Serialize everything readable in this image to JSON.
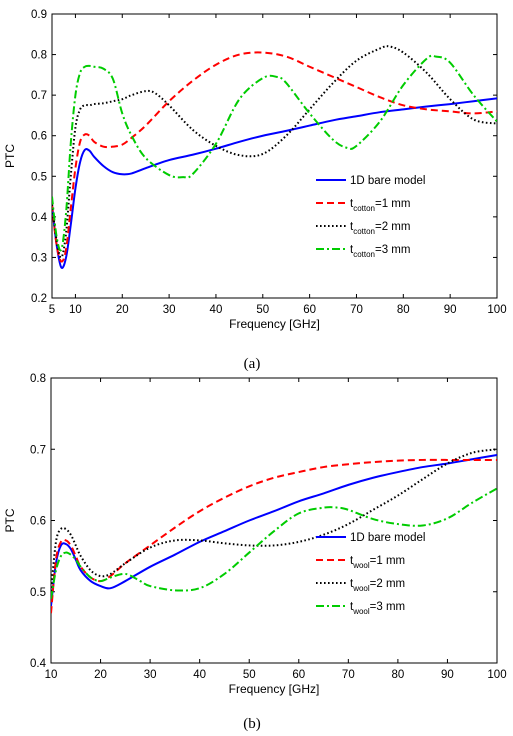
{
  "chart_data": [
    {
      "type": "line",
      "caption": "(a)",
      "xlabel": "Frequency [GHz]",
      "ylabel": "PTC",
      "xlim": [
        5,
        100
      ],
      "ylim": [
        0.2,
        0.9
      ],
      "xticks": [
        5,
        10,
        20,
        30,
        40,
        50,
        60,
        70,
        80,
        90,
        100
      ],
      "yticks": [
        0.2,
        0.3,
        0.4,
        0.5,
        0.6,
        0.7,
        0.8,
        0.9
      ],
      "grid": false,
      "legend_position": "lower-right",
      "series": [
        {
          "legend_main": "1D bare model",
          "legend_sub": "",
          "legend_tail": "",
          "color": "#0000ff",
          "style": "solid",
          "x": [
            5,
            6,
            7,
            8,
            9,
            10,
            11,
            12,
            13,
            14,
            16,
            18,
            20,
            22,
            25,
            30,
            35,
            40,
            45,
            50,
            55,
            60,
            65,
            70,
            75,
            80,
            85,
            90,
            95,
            100
          ],
          "y": [
            0.43,
            0.33,
            0.275,
            0.3,
            0.38,
            0.47,
            0.535,
            0.565,
            0.563,
            0.548,
            0.525,
            0.51,
            0.505,
            0.507,
            0.52,
            0.54,
            0.553,
            0.568,
            0.585,
            0.6,
            0.612,
            0.625,
            0.638,
            0.648,
            0.658,
            0.665,
            0.672,
            0.678,
            0.685,
            0.692
          ]
        },
        {
          "legend_main": "t",
          "legend_sub": "cotton",
          "legend_tail": "=1 mm",
          "color": "#ff0000",
          "style": "dash",
          "x": [
            5,
            6,
            7,
            8,
            9,
            10,
            11,
            12,
            13,
            14,
            16,
            18,
            20,
            22,
            25,
            30,
            35,
            40,
            45,
            50,
            55,
            60,
            65,
            70,
            75,
            80,
            85,
            90,
            95,
            100
          ],
          "y": [
            0.43,
            0.33,
            0.29,
            0.32,
            0.42,
            0.52,
            0.585,
            0.603,
            0.6,
            0.585,
            0.573,
            0.573,
            0.578,
            0.595,
            0.625,
            0.685,
            0.735,
            0.775,
            0.8,
            0.805,
            0.795,
            0.77,
            0.745,
            0.72,
            0.695,
            0.675,
            0.665,
            0.66,
            0.655,
            0.66
          ]
        },
        {
          "legend_main": "t",
          "legend_sub": "cotton",
          "legend_tail": "=2 mm",
          "color": "#000000",
          "style": "dot",
          "x": [
            5,
            6,
            7,
            8,
            9,
            10,
            11,
            12,
            13,
            14,
            16,
            18,
            20,
            22,
            25,
            27,
            30,
            35,
            40,
            45,
            50,
            55,
            60,
            65,
            70,
            75,
            77,
            80,
            85,
            90,
            95,
            100
          ],
          "y": [
            0.43,
            0.34,
            0.3,
            0.36,
            0.5,
            0.62,
            0.665,
            0.675,
            0.675,
            0.678,
            0.68,
            0.685,
            0.69,
            0.7,
            0.71,
            0.705,
            0.675,
            0.615,
            0.575,
            0.552,
            0.555,
            0.6,
            0.665,
            0.73,
            0.785,
            0.815,
            0.82,
            0.805,
            0.755,
            0.69,
            0.64,
            0.63
          ]
        },
        {
          "legend_main": "t",
          "legend_sub": "cotton",
          "legend_tail": "=3 mm",
          "color": "#00cc00",
          "style": "dashdot",
          "x": [
            5,
            6,
            7,
            8,
            9,
            10,
            11,
            12,
            13,
            14,
            16,
            18,
            20,
            22,
            25,
            30,
            33,
            35,
            40,
            45,
            50,
            53,
            55,
            60,
            65,
            68,
            70,
            75,
            80,
            85,
            87,
            90,
            95,
            100
          ],
          "y": [
            0.45,
            0.35,
            0.32,
            0.41,
            0.58,
            0.7,
            0.755,
            0.77,
            0.772,
            0.77,
            0.765,
            0.74,
            0.655,
            0.6,
            0.545,
            0.503,
            0.498,
            0.505,
            0.58,
            0.69,
            0.742,
            0.745,
            0.73,
            0.655,
            0.59,
            0.57,
            0.575,
            0.635,
            0.725,
            0.79,
            0.795,
            0.78,
            0.7,
            0.635
          ]
        }
      ]
    },
    {
      "type": "line",
      "caption": "(b)",
      "xlabel": "Frequency [GHz]",
      "ylabel": "PTC",
      "xlim": [
        10,
        100
      ],
      "ylim": [
        0.4,
        0.8
      ],
      "xticks": [
        10,
        20,
        30,
        40,
        50,
        60,
        70,
        80,
        90,
        100
      ],
      "yticks": [
        0.4,
        0.5,
        0.6,
        0.7,
        0.8
      ],
      "grid": false,
      "legend_position": "lower-right",
      "series": [
        {
          "legend_main": "1D bare model",
          "legend_sub": "",
          "legend_tail": "",
          "color": "#0000ff",
          "style": "solid",
          "x": [
            10,
            11,
            12,
            13,
            14,
            15,
            16,
            18,
            20,
            22,
            25,
            30,
            35,
            40,
            45,
            50,
            55,
            60,
            65,
            70,
            75,
            80,
            85,
            90,
            95,
            100
          ],
          "y": [
            0.48,
            0.54,
            0.565,
            0.567,
            0.56,
            0.545,
            0.53,
            0.515,
            0.508,
            0.505,
            0.515,
            0.535,
            0.552,
            0.57,
            0.585,
            0.6,
            0.613,
            0.627,
            0.638,
            0.65,
            0.66,
            0.668,
            0.675,
            0.68,
            0.686,
            0.692
          ]
        },
        {
          "legend_main": "t",
          "legend_sub": "wool",
          "legend_tail": "=1 mm",
          "color": "#ff0000",
          "style": "dash",
          "x": [
            10,
            11,
            12,
            13,
            14,
            15,
            16,
            18,
            20,
            22,
            25,
            30,
            35,
            40,
            45,
            50,
            55,
            60,
            65,
            70,
            75,
            80,
            85,
            90,
            95,
            100
          ],
          "y": [
            0.47,
            0.545,
            0.57,
            0.572,
            0.565,
            0.55,
            0.535,
            0.52,
            0.515,
            0.522,
            0.54,
            0.565,
            0.59,
            0.613,
            0.632,
            0.648,
            0.66,
            0.668,
            0.675,
            0.679,
            0.682,
            0.684,
            0.685,
            0.685,
            0.685,
            0.685
          ]
        },
        {
          "legend_main": "t",
          "legend_sub": "wool",
          "legend_tail": "=2 mm",
          "color": "#000000",
          "style": "dot",
          "x": [
            10,
            11,
            12,
            13,
            14,
            15,
            16,
            18,
            20,
            22,
            25,
            30,
            35,
            40,
            45,
            50,
            55,
            60,
            65,
            70,
            75,
            80,
            85,
            90,
            95,
            100
          ],
          "y": [
            0.5,
            0.57,
            0.588,
            0.588,
            0.58,
            0.565,
            0.55,
            0.53,
            0.522,
            0.525,
            0.54,
            0.562,
            0.572,
            0.572,
            0.568,
            0.565,
            0.565,
            0.57,
            0.58,
            0.595,
            0.615,
            0.635,
            0.658,
            0.68,
            0.695,
            0.7
          ]
        },
        {
          "legend_main": "t",
          "legend_sub": "wool",
          "legend_tail": "=3 mm",
          "color": "#00cc00",
          "style": "dashdot",
          "x": [
            10,
            11,
            12,
            13,
            14,
            15,
            16,
            18,
            20,
            22,
            25,
            28,
            30,
            35,
            40,
            45,
            50,
            55,
            60,
            65,
            68,
            70,
            75,
            80,
            85,
            90,
            95,
            100
          ],
          "y": [
            0.49,
            0.53,
            0.55,
            0.555,
            0.552,
            0.545,
            0.535,
            0.52,
            0.515,
            0.52,
            0.525,
            0.515,
            0.508,
            0.502,
            0.505,
            0.525,
            0.555,
            0.585,
            0.61,
            0.618,
            0.618,
            0.615,
            0.602,
            0.595,
            0.593,
            0.603,
            0.625,
            0.645
          ]
        }
      ]
    }
  ]
}
